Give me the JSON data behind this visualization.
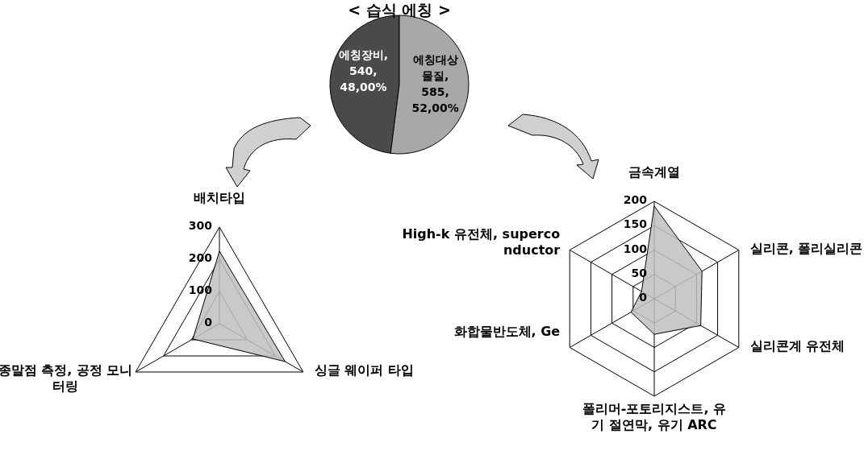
{
  "chart_data": [
    {
      "type": "pie",
      "title": "< 습식 에칭 >",
      "categories": [
        "에칭장비",
        "에칭대상물질"
      ],
      "values": [
        540,
        585
      ],
      "value_labels": [
        ", 540, 48,00%",
        ", 585, 52,00%"
      ],
      "colors": [
        "#4a4a4a",
        "#a8a8a8"
      ]
    },
    {
      "type": "radar",
      "categories": [
        "배치타입",
        "싱글 웨이퍼 타입",
        "종말점 측정, 공정 모니터링"
      ],
      "series": [
        {
          "color": "#c0c0c0",
          "values": [
            225,
            235,
            95
          ]
        }
      ],
      "ylim": [
        0,
        300
      ],
      "yticks": [
        0,
        100,
        200,
        300
      ],
      "grid": true
    },
    {
      "type": "radar",
      "categories": [
        "금속계열",
        "실리콘, 폴리실리콘",
        "실리콘계 유전체",
        "폴리머-포토리지스트, 유기 절연막, 유기 ARC",
        "화합물반도체, Ge",
        "High-k 유전체, superconductor"
      ],
      "series": [
        {
          "color": "#c0c0c0",
          "values": [
            190,
            113,
            110,
            73,
            55,
            30
          ]
        }
      ],
      "ylim": [
        0,
        200
      ],
      "yticks": [
        0,
        50,
        100,
        150,
        200
      ],
      "grid": true
    }
  ]
}
